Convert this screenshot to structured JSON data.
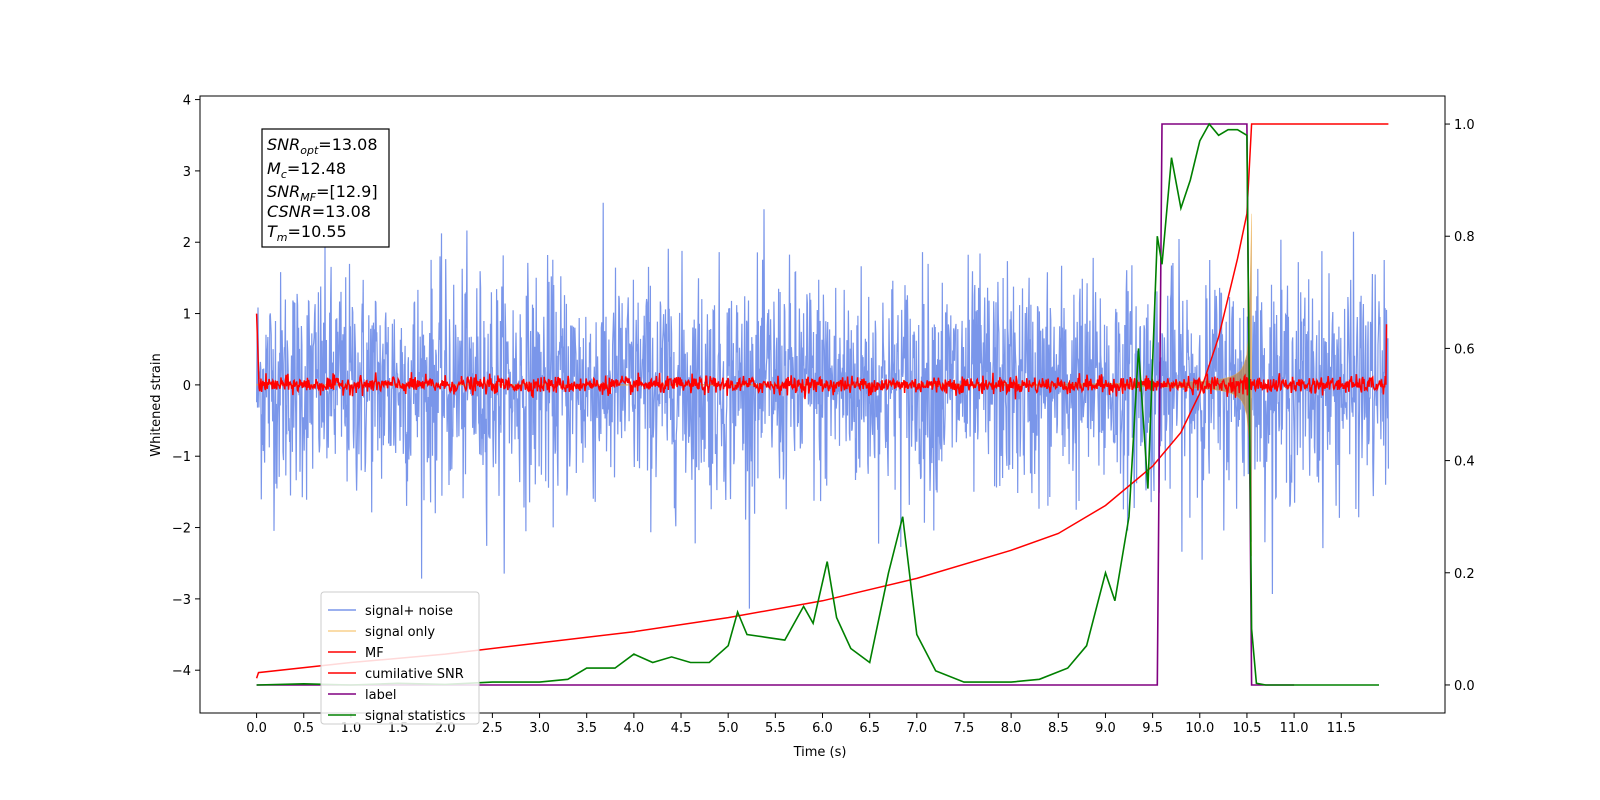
{
  "chart_data": {
    "type": "line",
    "xlabel": "Time (s)",
    "ylabel": "Whitened strain",
    "xlim": [
      -0.6,
      12.6
    ],
    "ylim": [
      -4.6,
      4.05
    ],
    "y2lim": [
      -0.05,
      1.05
    ],
    "x_ticks": [
      0.0,
      0.5,
      1.0,
      1.5,
      2.0,
      2.5,
      3.0,
      3.5,
      4.0,
      4.5,
      5.0,
      5.5,
      6.0,
      6.5,
      7.0,
      7.5,
      8.0,
      8.5,
      9.0,
      9.5,
      10.0,
      10.5,
      11.0,
      11.5
    ],
    "x_tick_labels": [
      "0.0",
      "0.5",
      "1.0",
      "1.5",
      "2.0",
      "2.5",
      "3.0",
      "3.5",
      "4.0",
      "4.5",
      "5.0",
      "5.5",
      "6.0",
      "6.5",
      "7.0",
      "7.5",
      "8.0",
      "8.5",
      "9.0",
      "9.5",
      "10.0",
      "10.5",
      "11.0",
      "11.5"
    ],
    "y_ticks": [
      -4,
      -3,
      -2,
      -1,
      0,
      1,
      2,
      3,
      4
    ],
    "y_tick_labels": [
      "−4",
      "−3",
      "−2",
      "−1",
      "0",
      "1",
      "2",
      "3",
      "4"
    ],
    "y2_ticks": [
      0.0,
      0.2,
      0.4,
      0.6,
      0.8,
      1.0
    ],
    "y2_tick_labels": [
      "0.0",
      "0.2",
      "0.4",
      "0.6",
      "0.8",
      "1.0"
    ],
    "annotation": {
      "snr_opt_sym": "SNR",
      "snr_opt_sub": "opt",
      "snr_opt_val": "=13.08",
      "mc_sym": "M",
      "mc_sub": "c",
      "mc_val": "=12.48",
      "snr_mf_sym": "SNR",
      "snr_mf_sub": "MF",
      "snr_mf_val": "=[12.9]",
      "csnr_sym": "CSNR",
      "csnr_val": "=13.08",
      "tm_sym": "T",
      "tm_sub": "m",
      "tm_val": "=10.55"
    },
    "legend_position": "lower-left",
    "series": [
      {
        "name": "signal+ noise",
        "color": "#4169e1",
        "axis": "left",
        "kind": "gaussian-noise",
        "sigma": 0.78,
        "x_start": 0.0,
        "x_end": 12.0
      },
      {
        "name": "signal only",
        "color": "#f5b041",
        "axis": "left",
        "kind": "chirp",
        "x_start": 0.0,
        "x_end": 10.55,
        "amplitude_at_merger": 2.4
      },
      {
        "name": "MF",
        "color": "#ff0000",
        "axis": "left",
        "kind": "matched-filter",
        "noise_sigma": 0.06,
        "start_value": 1.0,
        "end_value": 0.85
      },
      {
        "name": "cumilative SNR",
        "color": "#ff0000",
        "axis": "right",
        "x": [
          0.0,
          0.02,
          1.0,
          2.0,
          3.0,
          4.0,
          5.0,
          6.0,
          7.0,
          8.0,
          8.5,
          9.0,
          9.5,
          9.8,
          10.0,
          10.2,
          10.4,
          10.5,
          10.55,
          12.0
        ],
        "y": [
          0.012,
          0.022,
          0.04,
          0.055,
          0.075,
          0.095,
          0.12,
          0.15,
          0.19,
          0.24,
          0.27,
          0.32,
          0.39,
          0.45,
          0.52,
          0.62,
          0.76,
          0.84,
          1.0,
          1.0
        ]
      },
      {
        "name": "label",
        "color": "#800080",
        "axis": "right",
        "x": [
          0.0,
          9.55,
          9.6,
          10.5,
          10.55,
          11.0
        ],
        "y": [
          0.0,
          0.0,
          1.0,
          1.0,
          0.0,
          0.0
        ]
      },
      {
        "name": "signal statistics",
        "color": "#008000",
        "axis": "right",
        "x": [
          0.0,
          0.5,
          1.0,
          1.5,
          2.0,
          2.5,
          3.0,
          3.3,
          3.5,
          3.8,
          4.0,
          4.2,
          4.4,
          4.6,
          4.8,
          5.0,
          5.1,
          5.2,
          5.4,
          5.6,
          5.8,
          5.9,
          6.05,
          6.15,
          6.3,
          6.5,
          6.7,
          6.85,
          7.0,
          7.2,
          7.5,
          8.0,
          8.3,
          8.6,
          8.8,
          9.0,
          9.1,
          9.25,
          9.35,
          9.45,
          9.55,
          9.6,
          9.7,
          9.8,
          9.9,
          10.0,
          10.1,
          10.2,
          10.3,
          10.4,
          10.5,
          10.55,
          10.6,
          10.7,
          11.0,
          11.5,
          11.9
        ],
        "y": [
          0.0,
          0.002,
          0.0,
          0.003,
          0.001,
          0.005,
          0.005,
          0.01,
          0.03,
          0.03,
          0.055,
          0.04,
          0.05,
          0.04,
          0.04,
          0.07,
          0.13,
          0.09,
          0.085,
          0.08,
          0.14,
          0.11,
          0.22,
          0.12,
          0.065,
          0.04,
          0.2,
          0.3,
          0.09,
          0.025,
          0.005,
          0.005,
          0.01,
          0.03,
          0.07,
          0.2,
          0.15,
          0.3,
          0.6,
          0.35,
          0.8,
          0.75,
          0.94,
          0.85,
          0.9,
          0.97,
          1.0,
          0.98,
          0.99,
          0.99,
          0.98,
          0.1,
          0.003,
          0.0,
          0.0,
          0.0,
          0.0
        ]
      }
    ]
  }
}
